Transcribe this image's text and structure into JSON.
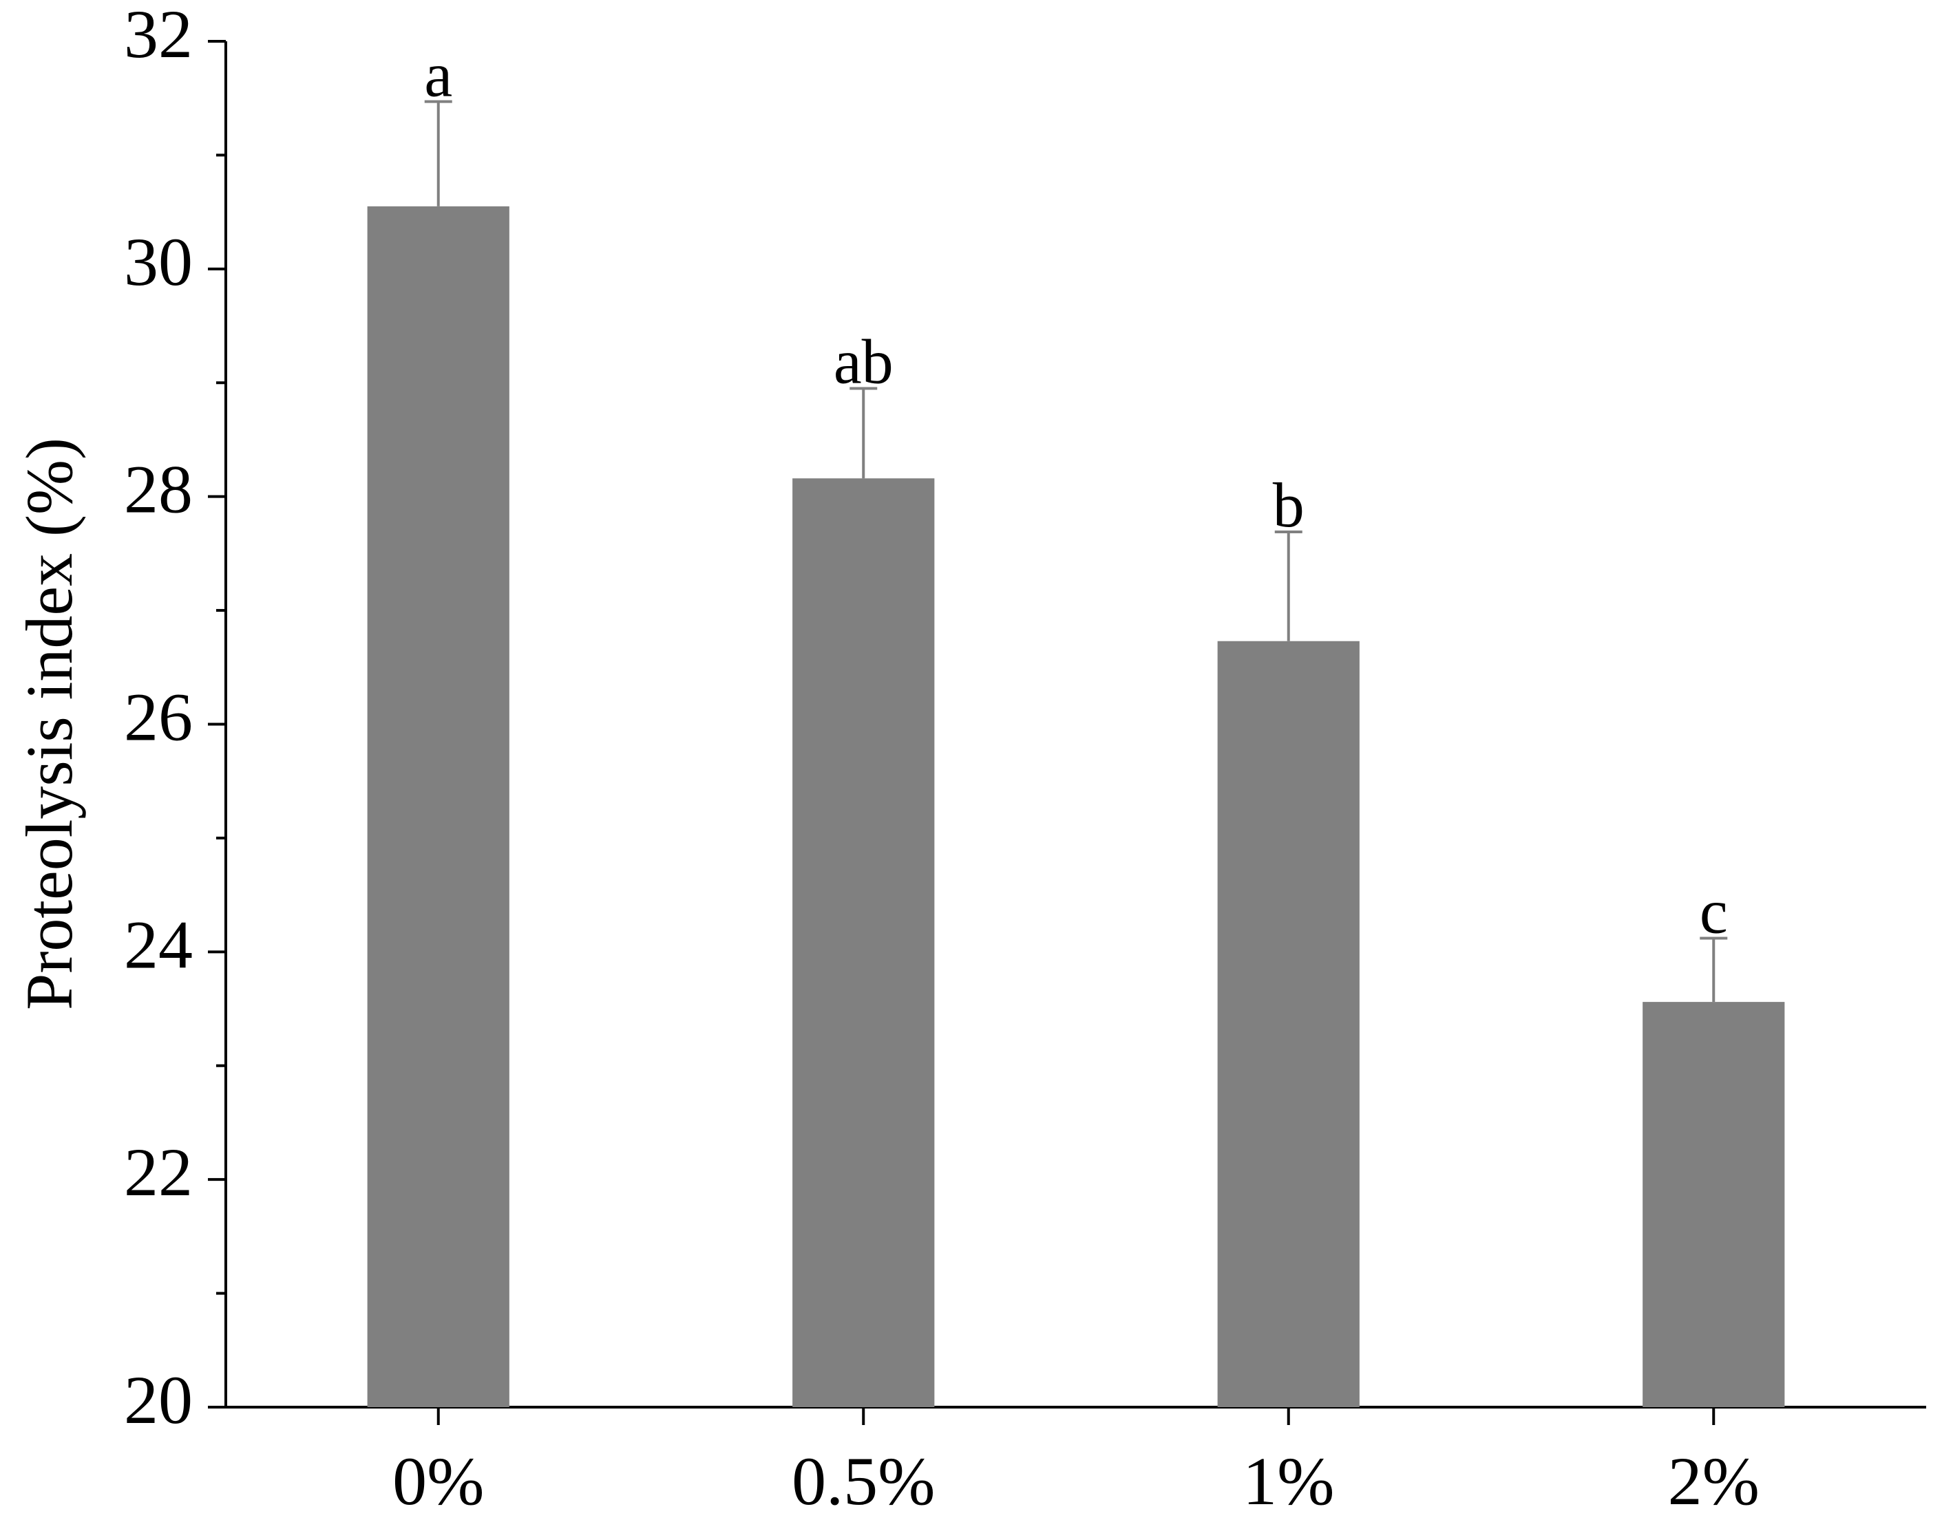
{
  "chart_data": {
    "type": "bar",
    "y_label": "Proteolysis index (%)",
    "categories": [
      "0%",
      "0.5%",
      "1%",
      "2%"
    ],
    "values": [
      30.55,
      28.16,
      26.73,
      23.56
    ],
    "errors": [
      0.92,
      0.79,
      0.96,
      0.56
    ],
    "annotations": [
      "a",
      "ab",
      "b",
      "c"
    ],
    "color": "#808080",
    "ylim": [
      20,
      32
    ],
    "yticks": [
      20,
      22,
      24,
      26,
      28,
      30,
      32
    ],
    "grid": false
  }
}
